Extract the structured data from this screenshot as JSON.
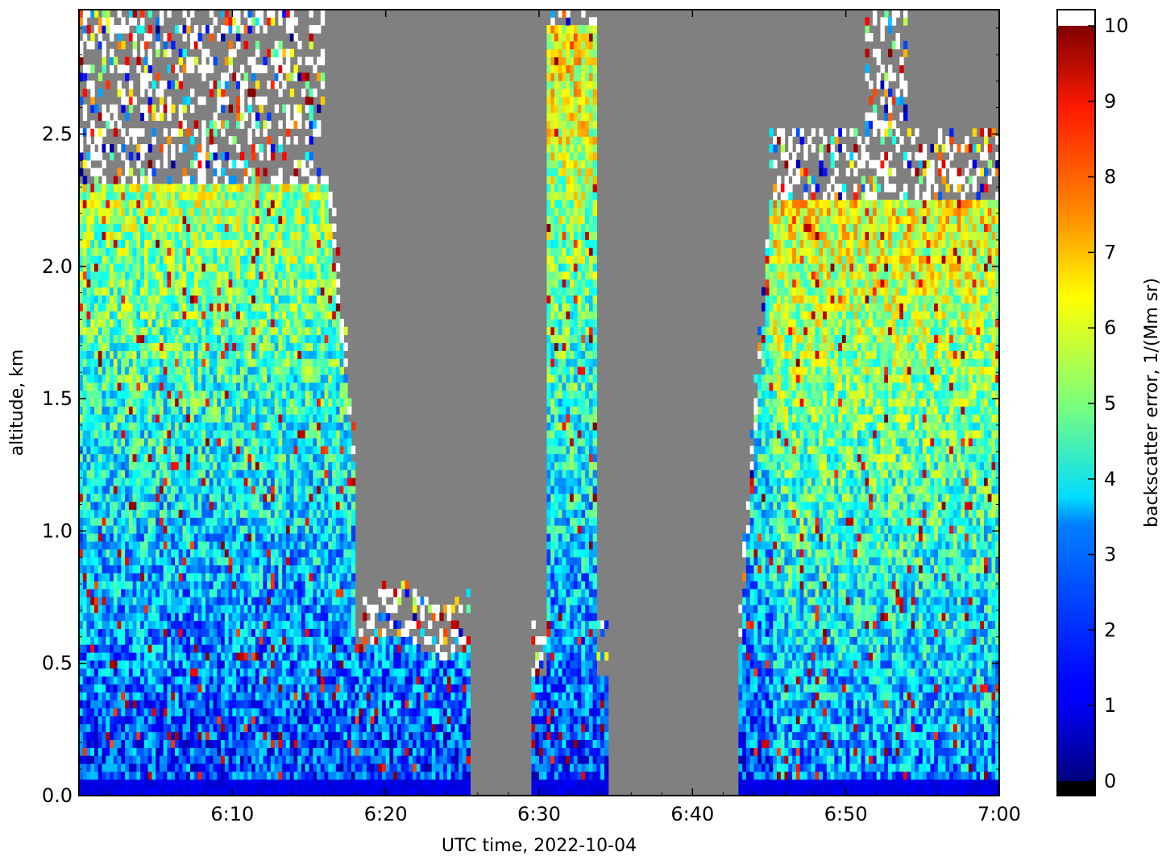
{
  "chart_data": {
    "type": "heatmap",
    "title": "",
    "xlabel": "UTC time,  2022-10-04",
    "ylabel": "altitude, km",
    "xlim": [
      "6:00",
      "7:00"
    ],
    "ylim": [
      0.0,
      2.97
    ],
    "x_ticks": [
      "6:10",
      "6:20",
      "6:30",
      "6:40",
      "6:50",
      "7:00"
    ],
    "y_ticks": [
      "0.0",
      "0.5",
      "1.0",
      "1.5",
      "2.0",
      "2.5"
    ],
    "grid": false,
    "colorbar": {
      "label": "backscatter error, 1/(Mm sr)",
      "range": [
        0,
        10
      ],
      "ticks": [
        "0",
        "1",
        "2",
        "3",
        "4",
        "5",
        "6",
        "7",
        "8",
        "9",
        "10"
      ],
      "colormap": "jet",
      "under_color": "#000000",
      "over_color": "#ffffff"
    },
    "masked_color": "#808080",
    "data_gaps_minutes": [
      [
        25.5,
        29.5
      ],
      [
        34.5,
        42.8
      ]
    ],
    "regions": [
      {
        "t_start": 0.0,
        "t_end": 16.0,
        "valid_top_km": 2.3,
        "noisy_top_km": 2.95
      },
      {
        "t_start": 16.0,
        "t_end": 25.5,
        "valid_top_km": 0.5
      },
      {
        "t_start": 29.5,
        "t_end": 34.5,
        "valid_top_km": 0.45,
        "narrow_column_top_km": 2.95
      },
      {
        "t_start": 42.8,
        "t_end": 60.0,
        "valid_top_km": 2.3,
        "noisy_top_km": 2.95
      }
    ]
  }
}
